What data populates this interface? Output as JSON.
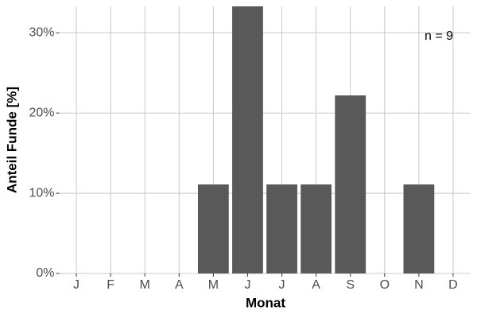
{
  "chart_data": {
    "type": "bar",
    "x_label": "Monat",
    "y_label": "Anteil Funde [%]",
    "annotation": "n = 9",
    "categories": [
      "J",
      "F",
      "M",
      "A",
      "M",
      "J",
      "J",
      "A",
      "S",
      "O",
      "N",
      "D"
    ],
    "values": [
      0,
      0,
      0,
      0,
      11.1,
      33.3,
      11.1,
      11.1,
      22.2,
      0,
      11.1,
      0
    ],
    "color": "#595959",
    "ylim": [
      0,
      33.3
    ],
    "yticks": [
      {
        "value": 0,
        "label": "0%"
      },
      {
        "value": 10,
        "label": "10%"
      },
      {
        "value": 20,
        "label": "20%"
      },
      {
        "value": 30,
        "label": "30%"
      }
    ],
    "grid": true
  }
}
